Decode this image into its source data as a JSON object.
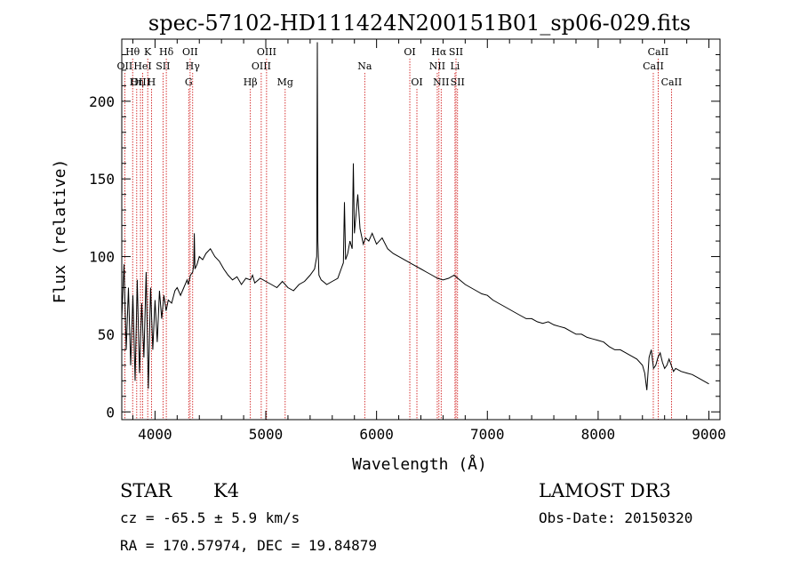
{
  "chart_data": {
    "type": "line",
    "title": "spec-57102-HD111424N200151B01_sp06-029.fits",
    "xlabel": "Wavelength (Å)",
    "ylabel": "Flux (relative)",
    "xlim": [
      3700,
      9100
    ],
    "ylim": [
      -5,
      240
    ],
    "xticks": [
      4000,
      5000,
      6000,
      7000,
      8000,
      9000
    ],
    "yticks": [
      0,
      50,
      100,
      150,
      200
    ],
    "grid": false,
    "line_color": "#000000",
    "marker_color": "#cc0000",
    "series": [
      {
        "name": "spectrum",
        "x": [
          3700,
          3720,
          3740,
          3760,
          3780,
          3800,
          3820,
          3840,
          3860,
          3880,
          3900,
          3920,
          3940,
          3960,
          3980,
          4000,
          4020,
          4040,
          4060,
          4080,
          4100,
          4120,
          4150,
          4180,
          4200,
          4230,
          4260,
          4290,
          4300,
          4320,
          4340,
          4350,
          4355,
          4360,
          4380,
          4400,
          4430,
          4460,
          4500,
          4540,
          4580,
          4620,
          4660,
          4700,
          4740,
          4780,
          4820,
          4860,
          4880,
          4900,
          4950,
          5000,
          5050,
          5100,
          5150,
          5200,
          5250,
          5300,
          5350,
          5400,
          5440,
          5460,
          5465,
          5470,
          5480,
          5500,
          5550,
          5600,
          5650,
          5680,
          5700,
          5710,
          5720,
          5740,
          5760,
          5780,
          5790,
          5800,
          5830,
          5850,
          5880,
          5900,
          5930,
          5960,
          6000,
          6050,
          6100,
          6150,
          6200,
          6250,
          6300,
          6350,
          6400,
          6450,
          6500,
          6550,
          6600,
          6650,
          6700,
          6750,
          6800,
          6850,
          6900,
          6950,
          7000,
          7050,
          7100,
          7150,
          7200,
          7250,
          7300,
          7350,
          7400,
          7450,
          7500,
          7550,
          7600,
          7650,
          7700,
          7750,
          7800,
          7850,
          7900,
          7950,
          8000,
          8050,
          8100,
          8150,
          8200,
          8250,
          8300,
          8350,
          8400,
          8420,
          8440,
          8460,
          8480,
          8500,
          8520,
          8540,
          8560,
          8580,
          8600,
          8620,
          8640,
          8660,
          8680,
          8700,
          8750,
          8800,
          8850,
          8900,
          8950,
          9000
        ],
        "y": [
          60,
          95,
          40,
          80,
          30,
          75,
          20,
          85,
          25,
          70,
          35,
          90,
          15,
          80,
          40,
          72,
          45,
          78,
          60,
          75,
          65,
          72,
          70,
          78,
          80,
          75,
          80,
          85,
          82,
          88,
          90,
          95,
          115,
          92,
          95,
          100,
          98,
          102,
          105,
          100,
          97,
          92,
          88,
          85,
          87,
          82,
          86,
          85,
          88,
          83,
          86,
          84,
          82,
          80,
          84,
          80,
          78,
          82,
          84,
          88,
          92,
          100,
          238,
          110,
          88,
          85,
          82,
          84,
          86,
          92,
          96,
          135,
          98,
          102,
          110,
          105,
          160,
          115,
          140,
          118,
          108,
          112,
          110,
          115,
          108,
          112,
          105,
          102,
          100,
          98,
          96,
          94,
          92,
          90,
          88,
          86,
          85,
          86,
          88,
          85,
          82,
          80,
          78,
          76,
          75,
          72,
          70,
          68,
          66,
          64,
          62,
          60,
          60,
          58,
          57,
          58,
          56,
          55,
          54,
          52,
          50,
          50,
          48,
          47,
          46,
          45,
          42,
          40,
          40,
          38,
          36,
          34,
          30,
          25,
          14,
          35,
          40,
          28,
          30,
          35,
          38,
          32,
          28,
          30,
          34,
          30,
          26,
          28,
          26,
          25,
          24,
          22,
          20,
          18
        ]
      }
    ],
    "line_ids": [
      {
        "label": "Hθ",
        "x": 3798,
        "row": 0
      },
      {
        "label": "OII",
        "x": 3727,
        "row": 1
      },
      {
        "label": "OIII",
        "x": 3869,
        "row": 2
      },
      {
        "label": "Hη",
        "x": 3835,
        "row": 2
      },
      {
        "label": "K",
        "x": 3934,
        "row": 0
      },
      {
        "label": "HeI",
        "x": 3889,
        "row": 1
      },
      {
        "label": "H",
        "x": 3968,
        "row": 2
      },
      {
        "label": "Hδ",
        "x": 4102,
        "row": 0
      },
      {
        "label": "SII",
        "x": 4072,
        "row": 1
      },
      {
        "label": "OII",
        "x": 4317,
        "row": 0
      },
      {
        "label": "Hγ",
        "x": 4340,
        "row": 1
      },
      {
        "label": "G",
        "x": 4304,
        "row": 2
      },
      {
        "label": "OIII",
        "x": 5007,
        "row": 0
      },
      {
        "label": "OIII",
        "x": 4959,
        "row": 1
      },
      {
        "label": "Hβ",
        "x": 4861,
        "row": 2
      },
      {
        "label": "Mg",
        "x": 5175,
        "row": 2
      },
      {
        "label": "Na",
        "x": 5893,
        "row": 1
      },
      {
        "label": "OI",
        "x": 6300,
        "row": 0
      },
      {
        "label": "OI",
        "x": 6364,
        "row": 2
      },
      {
        "label": "Hα",
        "x": 6563,
        "row": 0
      },
      {
        "label": "SII",
        "x": 6717,
        "row": 0
      },
      {
        "label": "NII",
        "x": 6548,
        "row": 1
      },
      {
        "label": "Li",
        "x": 6708,
        "row": 1
      },
      {
        "label": "NII",
        "x": 6583,
        "row": 2
      },
      {
        "label": "SII",
        "x": 6731,
        "row": 2
      },
      {
        "label": "CaII",
        "x": 8542,
        "row": 0
      },
      {
        "label": "CaII",
        "x": 8498,
        "row": 1
      },
      {
        "label": "CaII",
        "x": 8662,
        "row": 2
      }
    ]
  },
  "footer": {
    "object_class": "STAR",
    "subclass": "K4",
    "survey": "LAMOST DR3",
    "redshift": "cz = -65.5 ± 5.9 km/s",
    "obs_date": "Obs-Date: 20150320",
    "coords": "RA = 170.57974, DEC =  19.84879"
  }
}
